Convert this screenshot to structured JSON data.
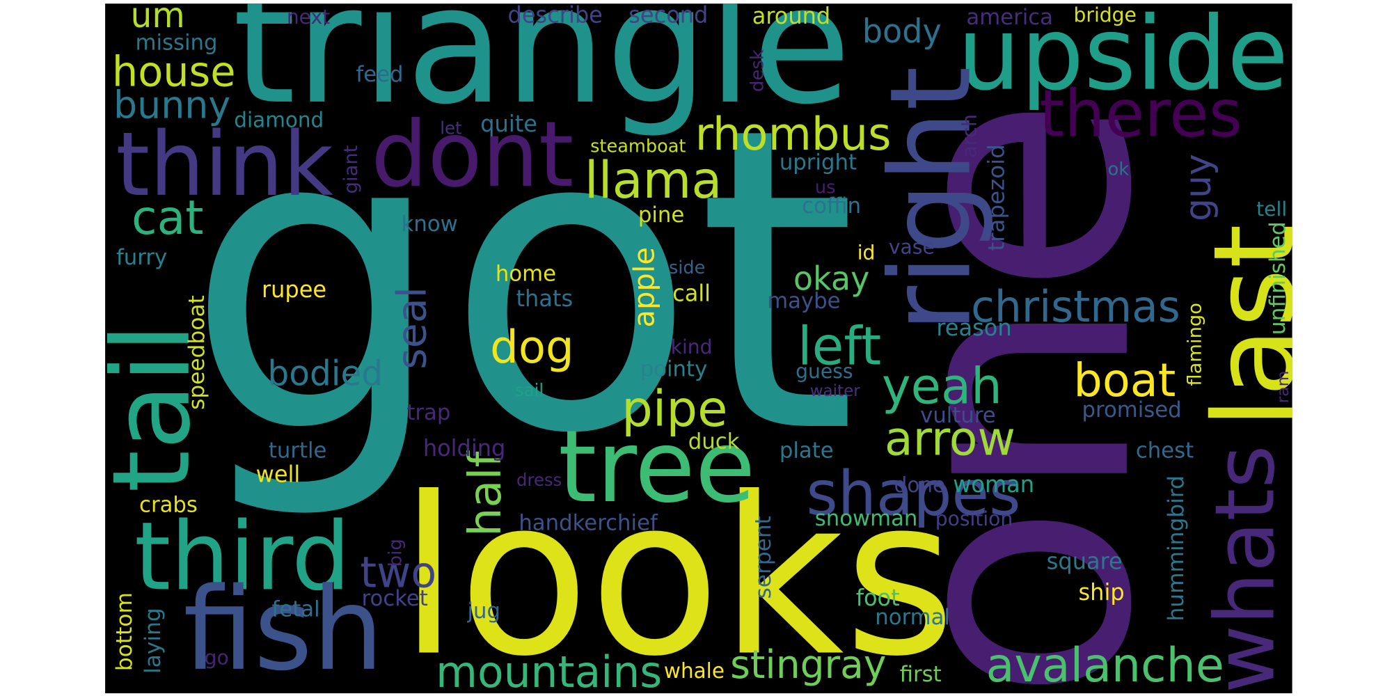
{
  "words": [
    "got",
    "one",
    "looks",
    "triangle",
    "upside",
    "right",
    "last",
    "whats",
    "theres",
    "think",
    "dont",
    "tail",
    "third",
    "fish",
    "tree",
    "shapes",
    "avalanche",
    "arrow",
    "yeah",
    "boat",
    "christmas",
    "left",
    "okay",
    "pipe",
    "dog",
    "seal",
    "half",
    "two",
    "rhombus",
    "llama",
    "house",
    "bunny",
    "um",
    "cat",
    "mountains",
    "stingray",
    "bodied",
    "body",
    "apple",
    "guy",
    "describe",
    "second",
    "next",
    "around",
    "america",
    "bridge",
    "missing",
    "feed",
    "diamond",
    "let",
    "quite",
    "steamboat",
    "desk",
    "giant",
    "upright",
    "us",
    "coffin",
    "arch",
    "trapezoid",
    "ok",
    "tell",
    "unfinished",
    "know",
    "pine",
    "furry",
    "id",
    "vase",
    "side",
    "rupee",
    "home",
    "thats",
    "call",
    "maybe",
    "speedboat",
    "reason",
    "flamingo",
    "kind",
    "pointy",
    "guess",
    "waiter",
    "sail",
    "trap",
    "promised",
    "ram",
    "vulture",
    "turtle",
    "duck",
    "plate",
    "holding",
    "chest",
    "well",
    "dress",
    "done",
    "woman",
    "hummingbird",
    "crabs",
    "handkerchief",
    "snowman",
    "position",
    "serpent",
    "big",
    "square",
    "ship",
    "foot",
    "rocket",
    "fetal",
    "normal",
    "jug",
    "bottom",
    "laying",
    "go",
    "whale",
    "first"
  ]
}
